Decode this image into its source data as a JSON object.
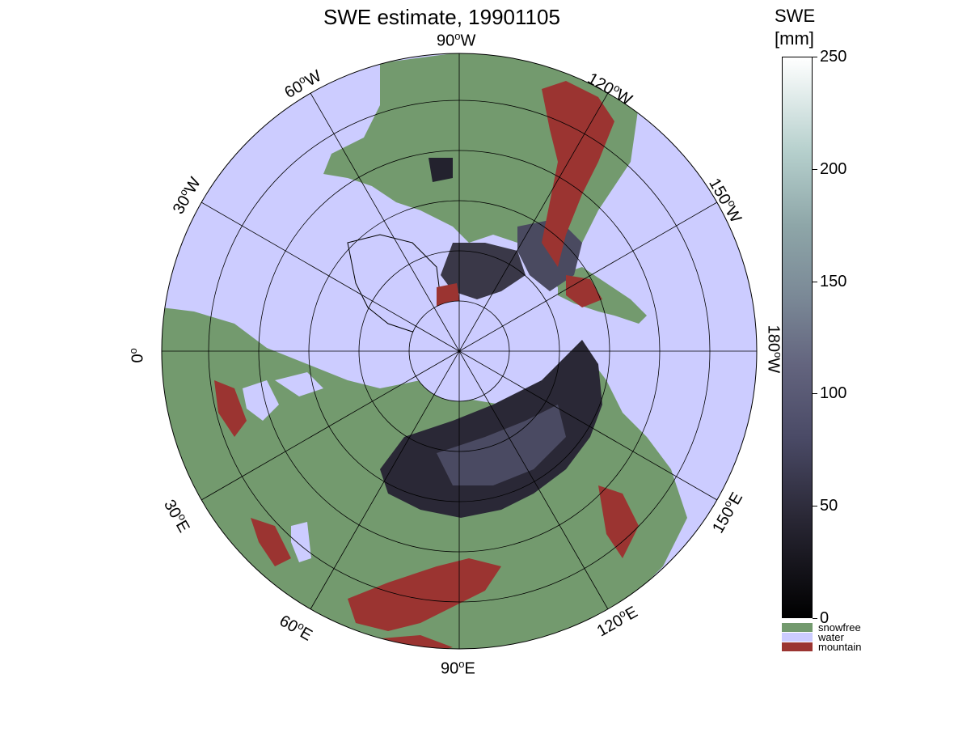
{
  "title": "SWE estimate, 19901105",
  "longitude_labels": {
    "w90": "90",
    "w90_suffix": "W",
    "w120": "120",
    "w120_suffix": "W",
    "w150": "150",
    "w150_suffix": "W",
    "w180": "180",
    "w180_suffix": "W",
    "w60": "60",
    "w60_suffix": "W",
    "w30": "30",
    "w30_suffix": "W",
    "zero": "0",
    "e30": "30",
    "e30_suffix": "E",
    "e60": "60",
    "e60_suffix": "E",
    "e90": "90",
    "e90_suffix": "E",
    "e120": "120",
    "e120_suffix": "E",
    "e150": "150",
    "e150_suffix": "E",
    "degree_symbol": "o"
  },
  "colorbar": {
    "title_line1": "SWE",
    "title_line2": "[mm]",
    "ticks": [
      "0",
      "50",
      "100",
      "150",
      "200",
      "250"
    ],
    "range": [
      0,
      250
    ],
    "gradient_colors": [
      "#000000",
      "#4a4a66",
      "#7a8896",
      "#b5cfcc",
      "#ffffff"
    ]
  },
  "legend": {
    "snowfree": "snowfree",
    "water": "water",
    "mountain": "mountain"
  },
  "colors": {
    "water": "#ccccff",
    "snowfree": "#739a6e",
    "mountain": "#9b3431",
    "snow_low": "#2a2836",
    "grid": "#000000"
  },
  "projection": "north polar stereographic",
  "grid": true
}
